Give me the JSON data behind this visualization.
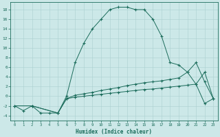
{
  "xlabel": "Humidex (Indice chaleur)",
  "bg_color": "#cce8e8",
  "line_color": "#1a6b5a",
  "grid_color": "#aacfcf",
  "xlim": [
    -0.5,
    23.5
  ],
  "ylim": [
    -5,
    19.5
  ],
  "xticks": [
    0,
    1,
    2,
    3,
    4,
    5,
    6,
    7,
    8,
    9,
    10,
    11,
    12,
    13,
    14,
    15,
    16,
    17,
    18,
    19,
    20,
    21,
    22,
    23
  ],
  "yticks": [
    -4,
    -2,
    0,
    2,
    4,
    6,
    8,
    10,
    12,
    14,
    16,
    18
  ],
  "line3_x": [
    0,
    1,
    2,
    3,
    4,
    5,
    6,
    7,
    8,
    9,
    10,
    11,
    12,
    13,
    14,
    15,
    16,
    17,
    18,
    19,
    20,
    21,
    22,
    23
  ],
  "line3_y": [
    -2,
    -3,
    -2,
    -3.5,
    -3.5,
    -3.5,
    0,
    7,
    11,
    14,
    16,
    18,
    18.5,
    18.5,
    18,
    18,
    16,
    12.5,
    7,
    6.5,
    5,
    2.5,
    -1.5,
    -0.5
  ],
  "line2_x": [
    0,
    2,
    5,
    6,
    7,
    8,
    9,
    10,
    11,
    12,
    13,
    14,
    15,
    16,
    17,
    18,
    19,
    20,
    21,
    22,
    23
  ],
  "line2_y": [
    -2,
    -2,
    -3.5,
    -0.5,
    0.2,
    0.5,
    0.8,
    1.2,
    1.5,
    1.8,
    2.2,
    2.5,
    2.8,
    3.0,
    3.2,
    3.5,
    3.8,
    5.0,
    7.0,
    3.0,
    -0.5
  ],
  "line1_x": [
    0,
    2,
    5,
    6,
    7,
    8,
    9,
    10,
    11,
    12,
    13,
    14,
    15,
    16,
    17,
    18,
    19,
    20,
    21,
    22,
    23
  ],
  "line1_y": [
    -2,
    -2,
    -3.5,
    -0.5,
    -0.2,
    0.0,
    0.2,
    0.4,
    0.6,
    0.8,
    1.0,
    1.2,
    1.4,
    1.5,
    1.7,
    1.9,
    2.1,
    2.3,
    2.5,
    5.0,
    -0.5
  ]
}
